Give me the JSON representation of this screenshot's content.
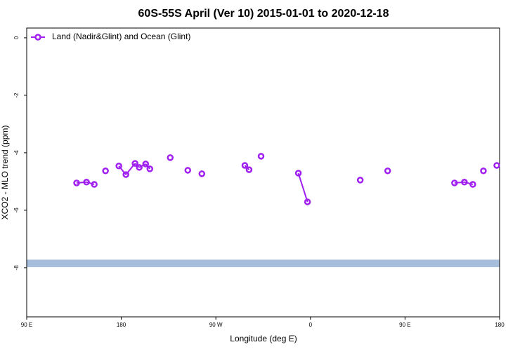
{
  "chart_data": {
    "type": "line",
    "title": "60S-55S April (Ver 10)   2015-01-01 to 2020-12-18",
    "xlabel": "Longitude (deg E)",
    "ylabel": "XCO2 - MLO trend (ppm)",
    "x": [
      137.5,
      146.9,
      154.3,
      165.0,
      177.7,
      184.4,
      193.1,
      197.1,
      203.2,
      207.2,
      226.6,
      243.3,
      256.7,
      297.6,
      301.6,
      313.0,
      348.5,
      357.2,
      407.4,
      433.5,
      497.1,
      506.5,
      514.5,
      524.6,
      537.3
    ],
    "series": [
      {
        "name": "Land (Nadir&Glint) and Ocean (Glint)",
        "color": "#a020f0",
        "values": [
          -5.05,
          -5.02,
          -5.1,
          -4.63,
          -4.46,
          -4.76,
          -4.37,
          -4.51,
          -4.39,
          -4.56,
          -4.17,
          -4.61,
          -4.73,
          -4.44,
          -4.59,
          -4.12,
          -4.71,
          -5.71,
          -4.95,
          -4.63,
          -5.05,
          -5.02,
          -5.1,
          -4.63,
          -4.44
        ]
      }
    ],
    "band": {
      "range": [
        -7.72,
        -7.98
      ],
      "color": "#a6bddb"
    },
    "xlim": [
      90,
      540
    ],
    "xticks": [
      {
        "value": 90,
        "label": "90 E"
      },
      {
        "value": 180,
        "label": "180"
      },
      {
        "value": 270,
        "label": "90 W"
      },
      {
        "value": 360,
        "label": "0"
      },
      {
        "value": 450,
        "label": "90 E"
      },
      {
        "value": 540,
        "label": "180"
      }
    ],
    "ylim": [
      -9.71,
      0.34
    ],
    "yticks": [
      0,
      -2,
      -4,
      -6,
      -8
    ],
    "legend": "top-left"
  }
}
